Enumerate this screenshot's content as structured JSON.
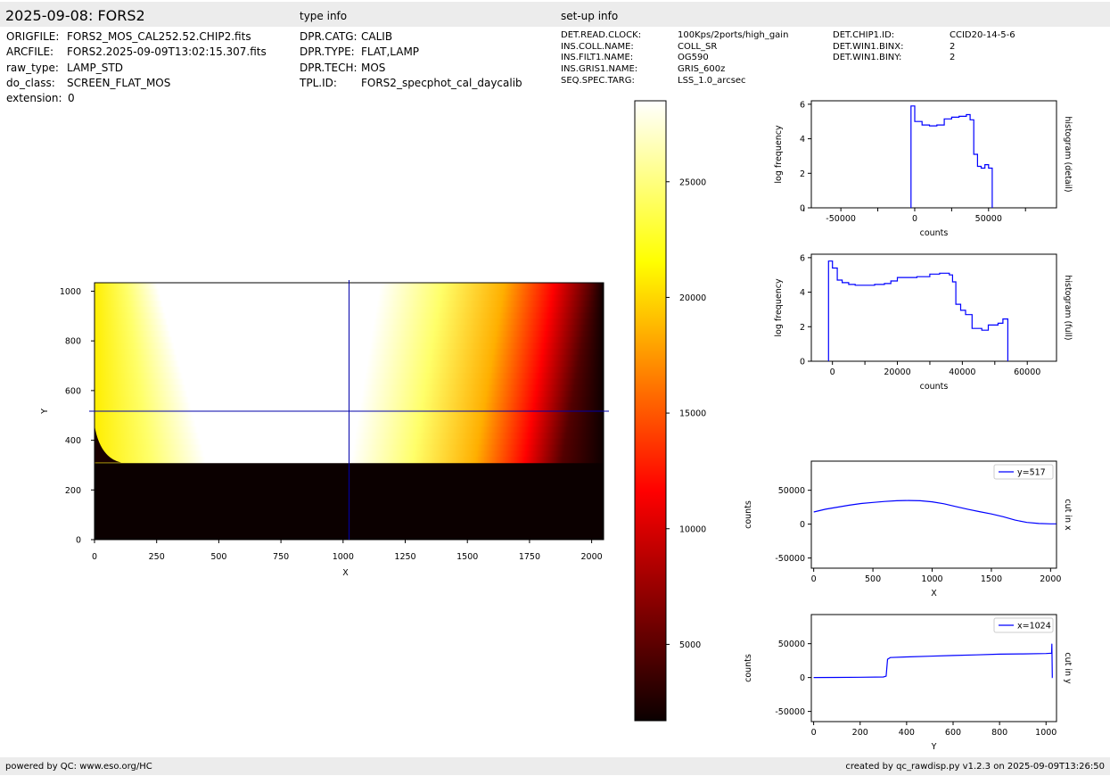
{
  "header": {
    "title": "2025-09-08: FORS2",
    "type_info_label": "type info",
    "setup_info_label": "set-up info"
  },
  "file_info": [
    {
      "key": "ORIGFILE:",
      "value": "FORS2_MOS_CAL252.52.CHIP2.fits"
    },
    {
      "key": "ARCFILE:",
      "value": "FORS2.2025-09-09T13:02:15.307.fits"
    },
    {
      "key": "raw_type:",
      "value": "LAMP_STD"
    },
    {
      "key": "do_class:",
      "value": "SCREEN_FLAT_MOS"
    },
    {
      "key": "extension:",
      "value": "0"
    }
  ],
  "type_info": [
    {
      "key": "DPR.CATG:",
      "value": "CALIB"
    },
    {
      "key": "DPR.TYPE:",
      "value": "FLAT,LAMP"
    },
    {
      "key": "DPR.TECH:",
      "value": "MOS"
    },
    {
      "key": "TPL.ID:",
      "value": "FORS2_specphot_cal_daycalib"
    }
  ],
  "setup_info_col1": [
    {
      "key": "DET.READ.CLOCK:",
      "value": "100Kps/2ports/high_gain"
    },
    {
      "key": "INS.COLL.NAME:",
      "value": "COLL_SR"
    },
    {
      "key": "INS.FILT1.NAME:",
      "value": "OG590"
    },
    {
      "key": "INS.GRIS1.NAME:",
      "value": "GRIS_600z"
    },
    {
      "key": "SEQ.SPEC.TARG:",
      "value": "LSS_1.0_arcsec"
    }
  ],
  "setup_info_col2": [
    {
      "key": "DET.CHIP1.ID:",
      "value": "CCID20-14-5-6"
    },
    {
      "key": "DET.WIN1.BINX:",
      "value": "2"
    },
    {
      "key": "DET.WIN1.BINY:",
      "value": "2"
    }
  ],
  "footer": {
    "left": "powered by QC: www.eso.org/HC",
    "right": "created by qc_rawdisp.py v1.2.3 on 2025-09-09T13:26:50"
  },
  "colors": {
    "header_band": "#ececec",
    "line": "#0000ff",
    "crosshair": "#0000aa",
    "colormap": "hot"
  },
  "chart_data": [
    {
      "type": "heatmap",
      "title": "",
      "xlabel": "X",
      "ylabel": "Y",
      "xlim": [
        0,
        2048
      ],
      "ylim": [
        0,
        1034
      ],
      "xticks": [
        0,
        250,
        500,
        750,
        1000,
        1250,
        1500,
        1750,
        2000
      ],
      "yticks": [
        0,
        200,
        400,
        600,
        800,
        1000
      ],
      "crosshair": {
        "x": 1024,
        "y": 517
      },
      "illuminated_y_range": [
        310,
        1034
      ],
      "bright_band_x": {
        "row_top": [
          250,
          1150
        ],
        "row_bottom": [
          450,
          1030
        ]
      },
      "colorbar": {
        "range": [
          1700,
          28500
        ],
        "ticks": [
          5000,
          10000,
          15000,
          20000,
          25000
        ],
        "colormap": "hot"
      }
    },
    {
      "type": "line",
      "step": true,
      "xlabel": "counts",
      "ylabel": "log frequency",
      "side_label": "histogram (detail)",
      "xlim": [
        -70000,
        96000
      ],
      "ylim": [
        0,
        6.2
      ],
      "xticks": [
        -50000,
        0,
        50000
      ],
      "yticks": [
        0,
        2,
        4,
        6
      ],
      "x": [
        -2500,
        -2500,
        0,
        5000,
        10000,
        15000,
        20000,
        25000,
        30000,
        35000,
        37500,
        40000,
        42500,
        45000,
        47500,
        50000,
        52500,
        52500
      ],
      "y": [
        0,
        5.9,
        5.0,
        4.8,
        4.75,
        4.8,
        5.15,
        5.25,
        5.3,
        5.4,
        5.1,
        3.1,
        2.4,
        2.3,
        2.5,
        2.3,
        2.3,
        0
      ]
    },
    {
      "type": "line",
      "step": true,
      "xlabel": "counts",
      "ylabel": "log frequency",
      "side_label": "histogram (full)",
      "xlim": [
        -6500,
        69000
      ],
      "ylim": [
        0,
        6.2
      ],
      "xticks": [
        0,
        20000,
        40000,
        60000
      ],
      "yticks": [
        0,
        2,
        4,
        6
      ],
      "x": [
        -1200,
        -1200,
        0,
        1500,
        3000,
        5000,
        7000,
        10000,
        13000,
        16000,
        18000,
        20000,
        26000,
        30000,
        33000,
        36000,
        37000,
        38000,
        39500,
        41000,
        43000,
        46000,
        48000,
        51000,
        52500,
        54000,
        54000
      ],
      "y": [
        0,
        5.8,
        5.4,
        4.7,
        4.55,
        4.45,
        4.4,
        4.4,
        4.45,
        4.5,
        4.65,
        4.85,
        4.9,
        5.05,
        5.1,
        5.0,
        4.6,
        3.3,
        2.95,
        2.7,
        1.9,
        1.8,
        2.1,
        2.2,
        2.45,
        1.45,
        0
      ]
    },
    {
      "type": "line",
      "xlabel": "X",
      "ylabel": "counts",
      "side_label": "cut in x",
      "legend": "y=517",
      "legend_position": "top-right",
      "xlim": [
        -20,
        2050
      ],
      "ylim": [
        -65000,
        93000
      ],
      "xticks": [
        0,
        500,
        1000,
        1500,
        2000
      ],
      "yticks": [
        -50000,
        0,
        50000
      ],
      "x": [
        0,
        100,
        200,
        300,
        400,
        500,
        600,
        700,
        800,
        900,
        1000,
        1100,
        1200,
        1300,
        1400,
        1500,
        1600,
        1700,
        1800,
        1900,
        2000,
        2048
      ],
      "y": [
        18000,
        22000,
        25000,
        28000,
        30500,
        32000,
        33500,
        34500,
        35000,
        34500,
        33000,
        30000,
        26000,
        22000,
        18500,
        15000,
        11000,
        6000,
        2500,
        1000,
        500,
        400
      ]
    },
    {
      "type": "line",
      "xlabel": "Y",
      "ylabel": "counts",
      "side_label": "cut in y",
      "legend": "x=1024",
      "legend_position": "top-right",
      "xlim": [
        -10,
        1045
      ],
      "ylim": [
        -65000,
        93000
      ],
      "xticks": [
        0,
        200,
        400,
        600,
        800,
        1000
      ],
      "yticks": [
        -50000,
        0,
        50000
      ],
      "x": [
        0,
        100,
        200,
        300,
        312,
        318,
        330,
        400,
        500,
        600,
        700,
        800,
        900,
        1000,
        1024,
        1025,
        1027,
        1028
      ],
      "y": [
        0,
        200,
        500,
        800,
        2000,
        27000,
        29500,
        30500,
        31500,
        32500,
        33500,
        34500,
        35000,
        35500,
        36000,
        50000,
        0,
        0
      ]
    }
  ]
}
